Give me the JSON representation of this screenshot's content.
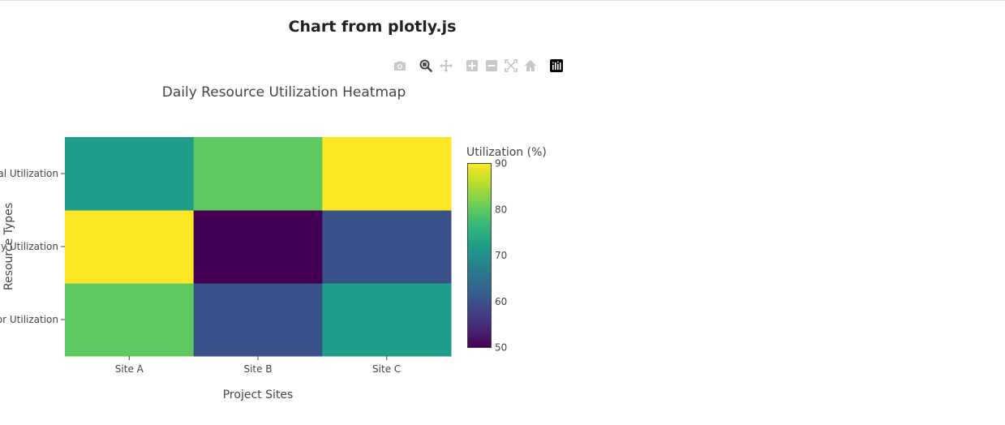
{
  "page": {
    "title": "Chart from plotly.js"
  },
  "modebar": {
    "buttons": [
      {
        "name": "camera-icon",
        "tooltip": "Download plot as a png"
      },
      {
        "name": "zoom-icon",
        "tooltip": "Zoom"
      },
      {
        "name": "pan-icon",
        "tooltip": "Pan"
      },
      {
        "name": "zoom-in-icon",
        "tooltip": "Zoom in"
      },
      {
        "name": "zoom-out-icon",
        "tooltip": "Zoom out"
      },
      {
        "name": "autoscale-icon",
        "tooltip": "Autoscale"
      },
      {
        "name": "reset-axes-icon",
        "tooltip": "Reset axes"
      },
      {
        "name": "plotly-logo-icon",
        "tooltip": "Produced with Plotly"
      }
    ],
    "active": "zoom-icon",
    "icon_color": "#c0c0c0",
    "active_color": "#444444"
  },
  "chart_data": {
    "type": "heatmap",
    "title": "Daily Resource Utilization Heatmap",
    "xlabel": "Project Sites",
    "ylabel": "Resource Types",
    "x": [
      "Site A",
      "Site B",
      "Site C"
    ],
    "y": [
      "Labor Utilization",
      "Equipment Utilization",
      "Material Utilization"
    ],
    "y_visible_ticks": [
      "or Utilization",
      "y Utilization",
      "al Utilization"
    ],
    "z": [
      [
        80,
        60,
        72
      ],
      [
        90,
        50,
        60
      ],
      [
        72,
        80,
        90
      ]
    ],
    "colorscale": "Viridis",
    "colorbar": {
      "title": "Utilization (%)",
      "range": [
        50,
        90
      ],
      "ticks": [
        50,
        60,
        70,
        80,
        90
      ]
    },
    "legend": "none",
    "grid": false
  }
}
